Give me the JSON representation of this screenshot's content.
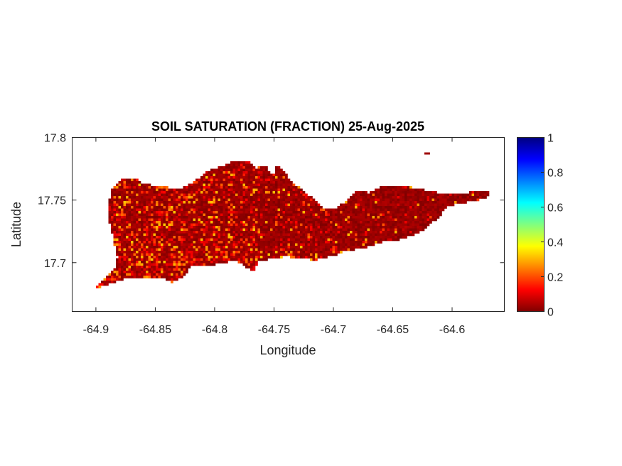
{
  "chart_data": {
    "type": "heatmap",
    "title": "SOIL SATURATION (FRACTION) 25-Aug-2025",
    "xlabel": "Longitude",
    "ylabel": "Latitude",
    "xlim": [
      -64.92,
      -64.556
    ],
    "ylim": [
      17.661,
      17.8
    ],
    "xticks": [
      -64.9,
      -64.85,
      -64.8,
      -64.75,
      -64.7,
      -64.65,
      -64.6
    ],
    "xtick_labels": [
      "-64.9",
      "-64.85",
      "-64.8",
      "-64.75",
      "-64.7",
      "-64.65",
      "-64.6"
    ],
    "yticks": [
      17.7,
      17.75,
      17.8
    ],
    "ytick_labels": [
      "17.7",
      "17.75",
      "17.8"
    ],
    "colorbar": {
      "colormap": "jet (reversed: 0 = dark red, 1 = dark blue)",
      "clim": [
        0,
        1
      ],
      "ticks": [
        0,
        0.2,
        0.4,
        0.6,
        0.8,
        1
      ],
      "tick_labels": [
        "0",
        "0.2",
        "0.4",
        "0.6",
        "0.8",
        "1"
      ],
      "placement": "right"
    },
    "grid": false,
    "value_summary": "mostly 0-0.1 (dark red) with scattered 0.15-0.35 cells, concentrated in western and southern parts",
    "region_outline": [
      [
        -64.9012,
        17.679
      ],
      [
        -64.891,
        17.689
      ],
      [
        -64.883,
        17.697
      ],
      [
        -64.882,
        17.705
      ],
      [
        -64.885,
        17.717
      ],
      [
        -64.89,
        17.739
      ],
      [
        -64.889,
        17.748
      ],
      [
        -64.887,
        17.759
      ],
      [
        -64.876,
        17.768
      ],
      [
        -64.867,
        17.768
      ],
      [
        -64.861,
        17.763
      ],
      [
        -64.846,
        17.761
      ],
      [
        -64.831,
        17.759
      ],
      [
        -64.819,
        17.763
      ],
      [
        -64.807,
        17.773
      ],
      [
        -64.783,
        17.781
      ],
      [
        -64.774,
        17.782
      ],
      [
        -64.765,
        17.776
      ],
      [
        -64.756,
        17.777
      ],
      [
        -64.751,
        17.768
      ],
      [
        -64.747,
        17.779
      ],
      [
        -64.735,
        17.765
      ],
      [
        -64.717,
        17.751
      ],
      [
        -64.708,
        17.743
      ],
      [
        -64.699,
        17.743
      ],
      [
        -64.687,
        17.751
      ],
      [
        -64.681,
        17.757
      ],
      [
        -64.669,
        17.756
      ],
      [
        -64.657,
        17.762
      ],
      [
        -64.639,
        17.761
      ],
      [
        -64.627,
        17.759
      ],
      [
        -64.606,
        17.755
      ],
      [
        -64.588,
        17.756
      ],
      [
        -64.579,
        17.757
      ],
      [
        -64.568,
        17.756
      ],
      [
        -64.573,
        17.751
      ],
      [
        -64.585,
        17.749
      ],
      [
        -64.603,
        17.745
      ],
      [
        -64.612,
        17.736
      ],
      [
        -64.621,
        17.728
      ],
      [
        -64.633,
        17.722
      ],
      [
        -64.645,
        17.718
      ],
      [
        -64.657,
        17.717
      ],
      [
        -64.675,
        17.711
      ],
      [
        -64.687,
        17.71
      ],
      [
        -64.699,
        17.706
      ],
      [
        -64.708,
        17.704
      ],
      [
        -64.717,
        17.702
      ],
      [
        -64.729,
        17.704
      ],
      [
        -64.741,
        17.705
      ],
      [
        -64.759,
        17.702
      ],
      [
        -64.764,
        17.701
      ],
      [
        -64.766,
        17.693
      ],
      [
        -64.774,
        17.697
      ],
      [
        -64.783,
        17.702
      ],
      [
        -64.801,
        17.698
      ],
      [
        -64.819,
        17.697
      ],
      [
        -64.828,
        17.688
      ],
      [
        -64.837,
        17.684
      ],
      [
        -64.843,
        17.688
      ],
      [
        -64.873,
        17.688
      ],
      [
        -64.882,
        17.685
      ],
      [
        -64.897,
        17.68
      ]
    ],
    "islet": [
      -64.621,
      17.7875
    ]
  }
}
